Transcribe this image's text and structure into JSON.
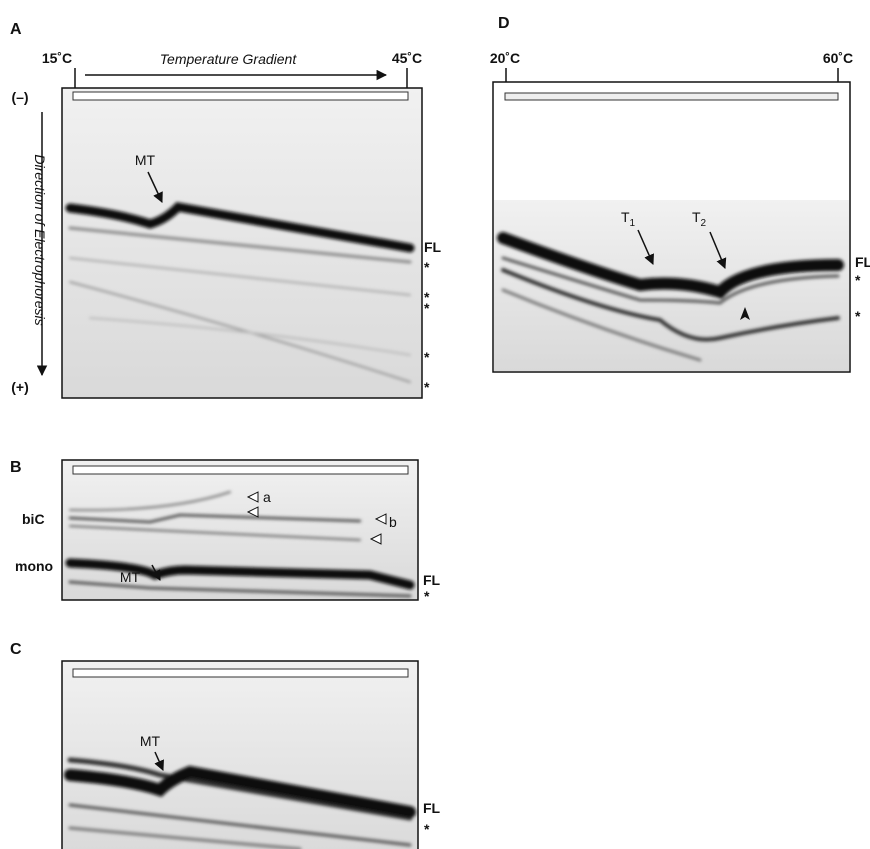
{
  "panels": [
    {
      "label": "A",
      "temp_start": "15˚C",
      "temp_end": "45˚C",
      "gradient_label": "Temperature Gradient",
      "polarity_top": "(–)",
      "polarity_bottom": "(+)",
      "direction_label": "Direction of Electrophoresis",
      "marker": "MT",
      "band_label": "FL",
      "asterisks": [
        "*",
        "*",
        "*",
        "*",
        "*"
      ]
    },
    {
      "label": "B",
      "row_labels": [
        "biC",
        "mono"
      ],
      "marker": "MT",
      "arrow_labels": [
        "a",
        "b"
      ],
      "band_label": "FL",
      "asterisks": [
        "*"
      ]
    },
    {
      "label": "C",
      "marker": "MT",
      "band_label": "FL",
      "asterisks": [
        "*"
      ]
    },
    {
      "label": "D",
      "temp_start": "20˚C",
      "temp_end": "60˚C",
      "transitions": [
        {
          "text": "T",
          "sub": "1"
        },
        {
          "text": "T",
          "sub": "2"
        }
      ],
      "band_label": "FL",
      "asterisks": [
        "*",
        "*"
      ]
    }
  ]
}
